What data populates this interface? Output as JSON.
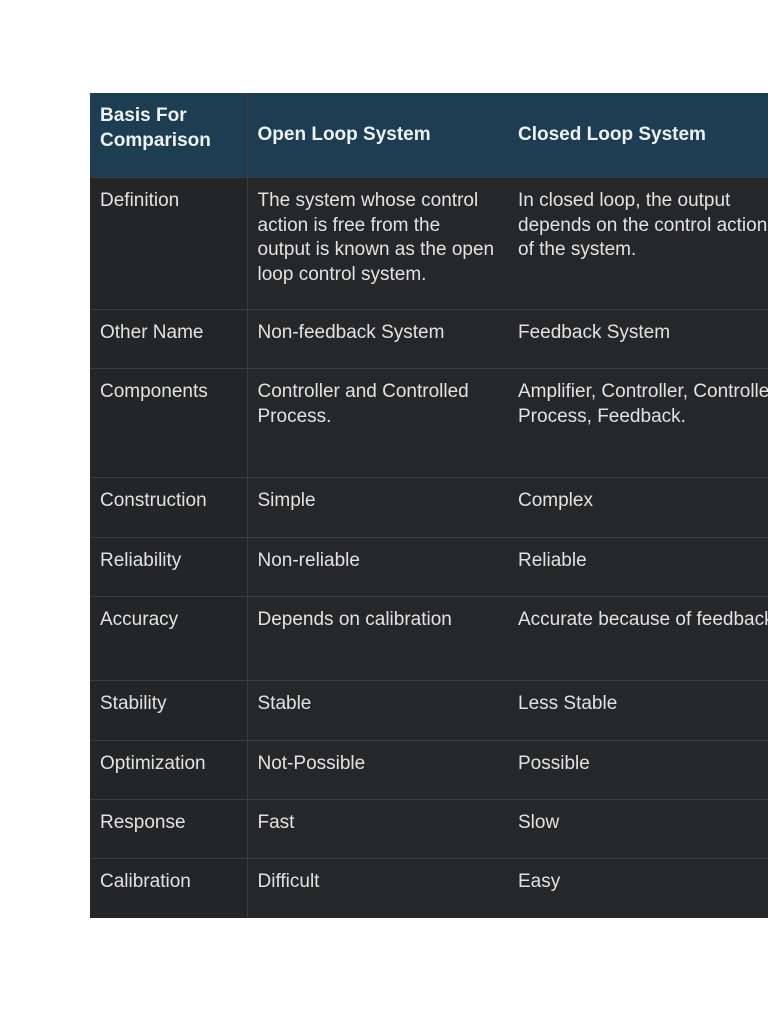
{
  "table": {
    "headers": [
      "Basis For Comparison",
      "Open Loop System",
      "Closed Loop System"
    ],
    "rows": [
      [
        "Definition",
        "The system whose control action is free from the output is known as the open loop control system.",
        "In closed loop, the output depends on the control action of the system."
      ],
      [
        "Other Name",
        "Non-feedback System",
        "Feedback System"
      ],
      [
        "Components",
        "Controller and Controlled Process.",
        "Amplifier, Controller, Controlled Process, Feedback."
      ],
      [
        "Construction",
        "Simple",
        "Complex"
      ],
      [
        "Reliability",
        "Non-reliable",
        "Reliable"
      ],
      [
        "Accuracy",
        "Depends on calibration",
        "Accurate because of feedback."
      ],
      [
        "Stability",
        "Stable",
        "Less Stable"
      ],
      [
        "Optimization",
        "Not-Possible",
        "Possible"
      ],
      [
        "Response",
        "Fast",
        "Slow"
      ],
      [
        "Calibration",
        "Difficult",
        "Easy"
      ]
    ]
  },
  "colors": {
    "header_bg": "#1c3d52",
    "body_bg": "#262729",
    "text": "#e2e2e2"
  }
}
